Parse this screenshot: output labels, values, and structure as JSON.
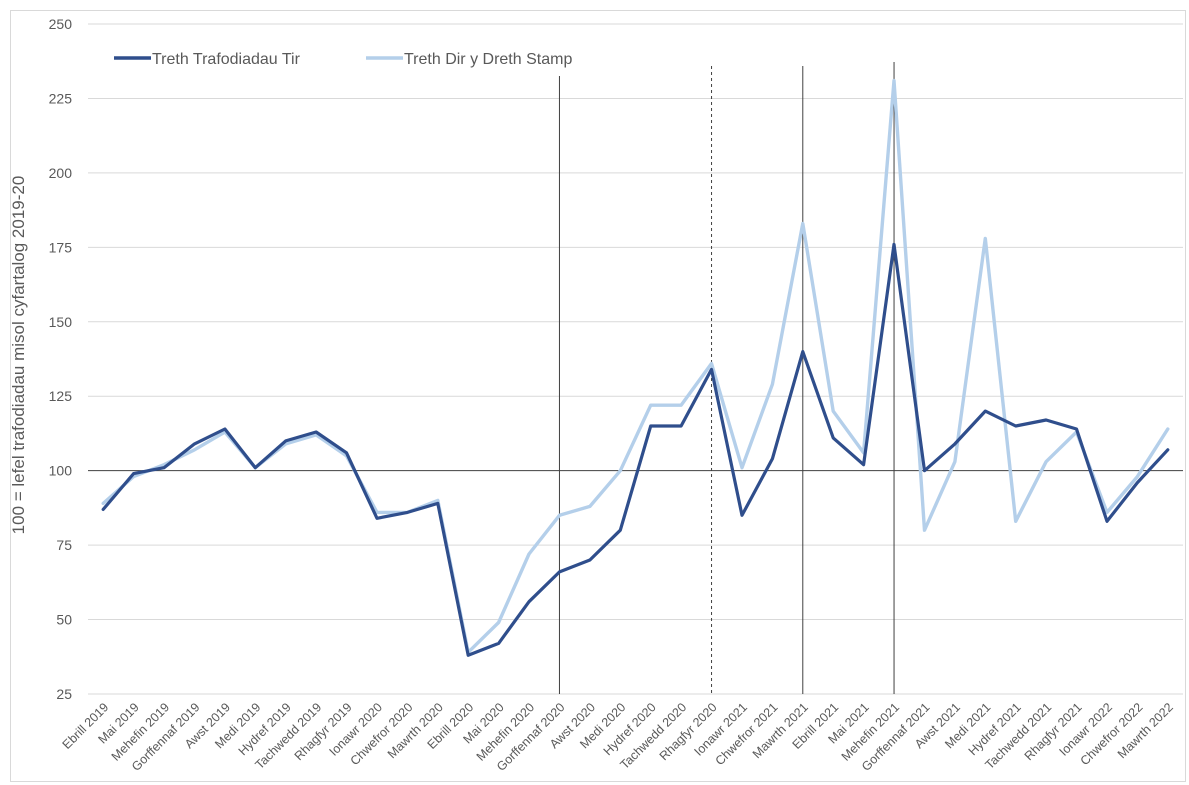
{
  "chart_data": {
    "type": "line",
    "title": "",
    "xlabel": "",
    "ylabel": "100 = lefel trafodiadau misol cyfartalog 2019-20",
    "ylim": [
      25,
      250
    ],
    "yticks": [
      25,
      50,
      75,
      100,
      125,
      150,
      175,
      200,
      225,
      250
    ],
    "grid": true,
    "legend_position": "top-left",
    "reference_line_y": 100,
    "categories": [
      "Ebrill 2019",
      "Mai 2019",
      "Mehefin 2019",
      "Gorffennaf 2019",
      "Awst 2019",
      "Medi 2019",
      "Hydref 2019",
      "Tachwedd 2019",
      "Rhagfyr 2019",
      "Ionawr 2020",
      "Chwefror 2020",
      "Mawrth 2020",
      "Ebrill 2020",
      "Mai 2020",
      "Mehefin 2020",
      "Gorffennaf 2020",
      "Awst 2020",
      "Medi 2020",
      "Hydref 2020",
      "Tachwedd 2020",
      "Rhagfyr 2020",
      "Ionawr 2021",
      "Chwefror 2021",
      "Mawrth 2021",
      "Ebrill 2021",
      "Mai 2021",
      "Mehefin 2021",
      "Gorffennaf 2021",
      "Awst 2021",
      "Medi 2021",
      "Hydref 2021",
      "Tachwedd 2021",
      "Rhagfyr 2021",
      "Ionawr 2022",
      "Chwefror 2022",
      "Mawrth 2022"
    ],
    "series": [
      {
        "name": "Treth Trafodiadau Tir",
        "color": "#2f4e8c",
        "values": [
          87,
          99,
          101,
          109,
          114,
          101,
          110,
          113,
          106,
          84,
          86,
          89,
          38,
          42,
          56,
          66,
          70,
          80,
          115,
          115,
          134,
          85,
          104,
          140,
          111,
          102,
          176,
          100,
          109,
          120,
          115,
          117,
          114,
          83,
          96,
          107
        ]
      },
      {
        "name": "Treth Dir y Dreth Stamp",
        "color": "#b4cfea",
        "values": [
          89,
          98,
          102,
          107,
          113,
          101,
          109,
          112,
          105,
          86,
          86,
          90,
          39,
          49,
          72,
          85,
          88,
          100,
          122,
          122,
          136,
          101,
          129,
          183,
          120,
          106,
          231,
          80,
          103,
          178,
          83,
          103,
          113,
          86,
          98,
          114
        ]
      }
    ],
    "vertical_markers": [
      {
        "after_category": "Gorffennaf 2020",
        "style": "solid"
      },
      {
        "after_category": "Rhagfyr 2020",
        "style": "dashed"
      },
      {
        "after_category": "Mawrth 2021",
        "style": "solid"
      },
      {
        "after_category": "Mehefin 2021",
        "style": "solid"
      }
    ]
  },
  "colors": {
    "grid": "#d9d9d9",
    "axis_text": "#595959",
    "reference_line": "#404040",
    "marker_line": "#404040"
  }
}
